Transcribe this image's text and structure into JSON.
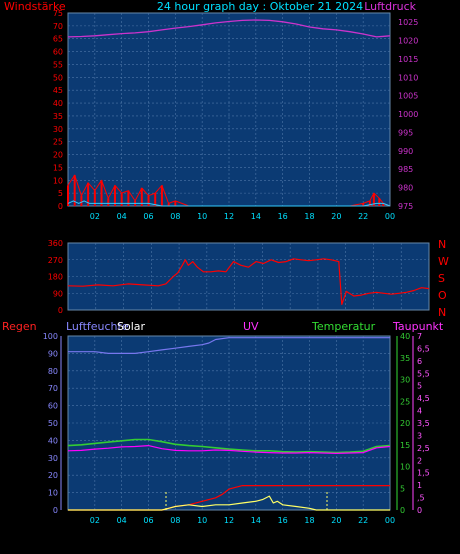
{
  "title": "24 hour graph day : Oktober 21 2024",
  "colors": {
    "background": "#000000",
    "plot_fill": "#0b3a73",
    "grid": "#4d76a8",
    "wind": "#ff0000",
    "gust": "#33ccff",
    "pressure": "#cc33cc",
    "direction": "#ff0000",
    "rain": "#ff0000",
    "humidity": "#7777ee",
    "solar": "#ffff66",
    "uv": "#ff00ff",
    "temperature": "#33cc33",
    "dewpoint": "#ff00ff"
  },
  "x_ticks": [
    "02",
    "04",
    "06",
    "08",
    "10",
    "12",
    "14",
    "16",
    "18",
    "20",
    "22",
    "00"
  ],
  "chart_data": [
    {
      "type": "line",
      "labels": {
        "left": "Windstärke",
        "right": "Luftdruck"
      },
      "xlim": [
        0,
        24
      ],
      "left_ticks": [
        "0",
        "5",
        "10",
        "15",
        "20",
        "25",
        "30",
        "35",
        "40",
        "45",
        "50",
        "55",
        "60",
        "65",
        "70",
        "75"
      ],
      "right_ticks": [
        "975",
        "980",
        "985",
        "990",
        "995",
        "1000",
        "1005",
        "1010",
        "1015",
        "1020",
        "1025"
      ],
      "left_ylim": [
        0,
        75
      ],
      "right_ylim": [
        975,
        1027.5
      ],
      "series": [
        {
          "key": "pressure",
          "axis": "right",
          "x": [
            0,
            1,
            2,
            3,
            4,
            5,
            6,
            7,
            8,
            9,
            10,
            11,
            12,
            13,
            14,
            15,
            16,
            17,
            18,
            19,
            20,
            21,
            22,
            23,
            24
          ],
          "y": [
            1021.0,
            1021.1,
            1021.3,
            1021.6,
            1021.9,
            1022.1,
            1022.4,
            1022.9,
            1023.4,
            1023.8,
            1024.3,
            1024.8,
            1025.2,
            1025.5,
            1025.6,
            1025.5,
            1025.1,
            1024.5,
            1023.7,
            1023.2,
            1022.9,
            1022.4,
            1021.8,
            1021.0,
            1021.3
          ]
        },
        {
          "key": "wind",
          "axis": "left",
          "x": [
            0,
            0.5,
            1,
            1.5,
            2,
            2.5,
            3,
            3.5,
            4,
            4.5,
            5,
            5.5,
            6,
            6.5,
            7,
            7.5,
            8,
            9,
            10,
            12,
            14,
            16,
            18,
            20,
            21,
            22,
            22.5,
            22.8,
            23.2,
            23.5,
            24
          ],
          "y": [
            8,
            12,
            4,
            9,
            6,
            10,
            3,
            8,
            5,
            6,
            2,
            7,
            4,
            5,
            8,
            1,
            2,
            0,
            0,
            0,
            0,
            0,
            0,
            0,
            0,
            1,
            2,
            5,
            3,
            1,
            0
          ]
        },
        {
          "key": "gust",
          "axis": "left",
          "x": [
            0,
            0.4,
            0.8,
            1.2,
            1.6,
            2,
            3,
            4,
            5,
            6,
            7,
            8,
            10,
            12,
            14,
            16,
            18,
            20,
            22,
            23,
            23.5,
            24
          ],
          "y": [
            1,
            2,
            1,
            2,
            1,
            1,
            1,
            1,
            1,
            1,
            0,
            0,
            0,
            0,
            0,
            0,
            0,
            0,
            0,
            1,
            1,
            0
          ]
        }
      ]
    },
    {
      "type": "line",
      "labels": {
        "right": [
          "N",
          "W",
          "S",
          "O",
          "N"
        ]
      },
      "xlim": [
        0,
        24
      ],
      "left_ticks": [
        "0",
        "90",
        "180",
        "270",
        "360"
      ],
      "left_ylim": [
        0,
        360
      ],
      "series": [
        {
          "key": "direction",
          "x": [
            0,
            1,
            2,
            3,
            4,
            5,
            6,
            6.5,
            7,
            7.3,
            7.6,
            7.8,
            8,
            8.3,
            8.6,
            9,
            9.5,
            10,
            10.5,
            11,
            11.5,
            12,
            12.5,
            13,
            13.5,
            14,
            14.5,
            15,
            15.5,
            16,
            16.5,
            17,
            17.5,
            18,
            18.2,
            18.5,
            19,
            19.5,
            20,
            20.5,
            21,
            21.5,
            22,
            22.5,
            23,
            23.5,
            24
          ],
          "y": [
            130,
            128,
            135,
            130,
            140,
            135,
            130,
            140,
            180,
            200,
            240,
            270,
            240,
            260,
            230,
            205,
            205,
            210,
            205,
            260,
            240,
            230,
            260,
            250,
            270,
            255,
            260,
            275,
            270,
            265,
            270,
            275,
            270,
            260,
            30,
            100,
            75,
            80,
            90,
            95,
            90,
            85,
            90,
            95,
            105,
            120,
            115
          ]
        }
      ]
    },
    {
      "type": "line",
      "labels": {
        "left": "Regen",
        "left2": "Luftfeuchte",
        "solar": "Solar",
        "uv": "UV",
        "temperature": "Temperatur",
        "dewpoint": "Taupunkt"
      },
      "xlim": [
        0,
        24
      ],
      "left_ticks": [
        "0",
        "10",
        "20",
        "30",
        "40",
        "50",
        "60",
        "70",
        "80",
        "90",
        "100"
      ],
      "left_ylim": [
        0,
        100
      ],
      "temp_ticks": [
        "0",
        "5",
        "10",
        "15",
        "20",
        "25",
        "30",
        "35",
        "40"
      ],
      "temp_ylim": [
        0,
        40
      ],
      "uv_ticks": [
        "0",
        ",5",
        "1",
        "1,5",
        "2",
        "2,5",
        "3",
        "3,5",
        "4",
        "4,5",
        "5",
        "5,5",
        "6",
        "6,5",
        "7"
      ],
      "uv_ylim": [
        0,
        7
      ],
      "series": [
        {
          "key": "humidity",
          "axis": "left",
          "x": [
            0,
            1,
            2,
            3,
            4,
            5,
            6,
            7,
            8,
            9,
            10,
            10.5,
            11,
            12,
            13,
            14,
            15,
            16,
            17,
            18,
            19,
            20,
            21,
            22,
            23,
            24
          ],
          "y": [
            91,
            91,
            91,
            90,
            90,
            90,
            91,
            92,
            93,
            94,
            95,
            96,
            98,
            99,
            99,
            99,
            99,
            99,
            99,
            99,
            99,
            99,
            99,
            99,
            99,
            99
          ]
        },
        {
          "key": "temperature",
          "axis": "temp",
          "x": [
            0,
            1,
            2,
            3,
            4,
            5,
            6,
            7,
            8,
            9,
            10,
            11,
            12,
            13,
            14,
            15,
            16,
            17,
            18,
            19,
            20,
            21,
            22,
            23,
            24
          ],
          "y": [
            14.8,
            15.0,
            15.3,
            15.6,
            15.9,
            16.2,
            16.2,
            15.7,
            15.1,
            14.8,
            14.6,
            14.3,
            14.0,
            13.8,
            13.6,
            13.6,
            13.4,
            13.3,
            13.4,
            13.3,
            13.2,
            13.3,
            13.5,
            14.6,
            14.8
          ]
        },
        {
          "key": "dewpoint",
          "axis": "temp",
          "x": [
            0,
            1,
            2,
            3,
            4,
            5,
            6,
            7,
            8,
            9,
            10,
            11,
            12,
            13,
            14,
            15,
            16,
            17,
            18,
            19,
            20,
            21,
            22,
            23,
            24
          ],
          "y": [
            13.6,
            13.7,
            14.0,
            14.2,
            14.5,
            14.6,
            14.8,
            14.1,
            13.7,
            13.6,
            13.6,
            13.8,
            13.7,
            13.5,
            13.3,
            13.2,
            13.1,
            13.1,
            13.2,
            13.1,
            13.0,
            13.1,
            13.2,
            14.3,
            14.6
          ]
        },
        {
          "key": "rain",
          "axis": "left",
          "x": [
            0,
            6,
            7,
            8,
            9,
            10,
            11,
            11.5,
            12,
            13,
            14,
            15,
            16,
            17,
            18,
            19,
            20,
            21,
            22,
            23,
            24
          ],
          "y": [
            0,
            0,
            0,
            2,
            3,
            5,
            7,
            9,
            12,
            14,
            14,
            14,
            14,
            14,
            14,
            14,
            14,
            14,
            14,
            14,
            14
          ]
        },
        {
          "key": "solar",
          "axis": "left",
          "x": [
            0,
            7,
            7.5,
            8,
            9,
            10,
            11,
            12,
            13,
            14,
            14.5,
            15,
            15.3,
            15.6,
            16,
            17,
            18,
            18.5,
            24
          ],
          "y": [
            0,
            0,
            1,
            2,
            3,
            2,
            3,
            3,
            4,
            5,
            6,
            8,
            4,
            5,
            3,
            2,
            1,
            0,
            0
          ]
        }
      ]
    }
  ]
}
